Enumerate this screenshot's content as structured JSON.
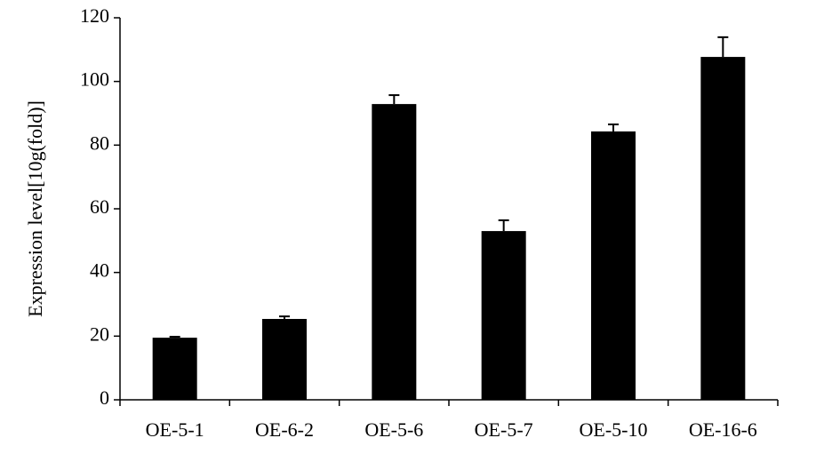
{
  "chart_data": {
    "type": "bar",
    "y_label": "Expression level[10g(fold)]",
    "categories": [
      "OE-5-1",
      "OE-6-2",
      "OE-5-6",
      "OE-5-7",
      "OE-5-10",
      "OE-16-6"
    ],
    "values": [
      19.5,
      25.4,
      92.9,
      53.0,
      84.3,
      107.7
    ],
    "errors": [
      0.3,
      0.8,
      2.8,
      3.4,
      2.2,
      6.2
    ],
    "color": "#000000",
    "ylim": [
      0,
      120
    ],
    "yticks": [
      0,
      20,
      40,
      60,
      80,
      100,
      120
    ],
    "grid": false
  }
}
